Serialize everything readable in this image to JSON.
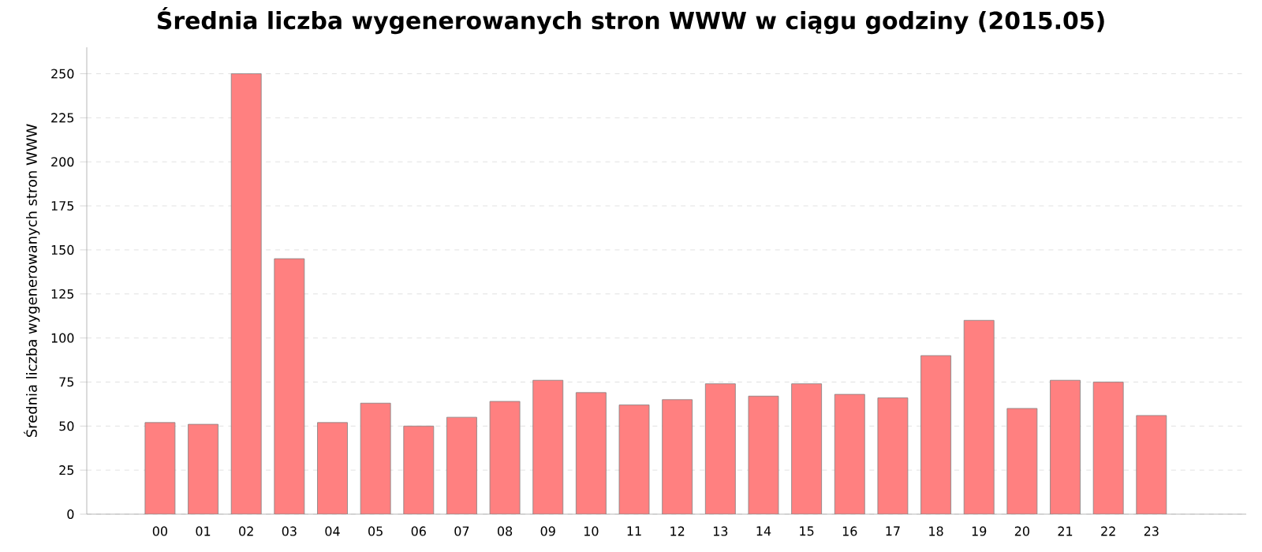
{
  "chart_data": {
    "type": "bar",
    "title": "Średnia liczba wygenerowanych stron WWW w ciągu godziny (2015.05)",
    "ylabel": "Średnia liczba wygenerowanych stron WWW",
    "categories": [
      "00",
      "01",
      "02",
      "03",
      "04",
      "05",
      "06",
      "07",
      "08",
      "09",
      "10",
      "11",
      "12",
      "13",
      "14",
      "15",
      "16",
      "17",
      "18",
      "19",
      "20",
      "21",
      "22",
      "23"
    ],
    "values": [
      52,
      51,
      250,
      145,
      52,
      63,
      50,
      55,
      64,
      76,
      69,
      62,
      65,
      74,
      67,
      74,
      68,
      66,
      90,
      110,
      60,
      76,
      75,
      56
    ],
    "color": "#ff8080",
    "ylim": [
      0,
      265
    ],
    "yticks": [
      0,
      25,
      50,
      75,
      100,
      125,
      150,
      175,
      200,
      225,
      250
    ],
    "grid": "y"
  }
}
